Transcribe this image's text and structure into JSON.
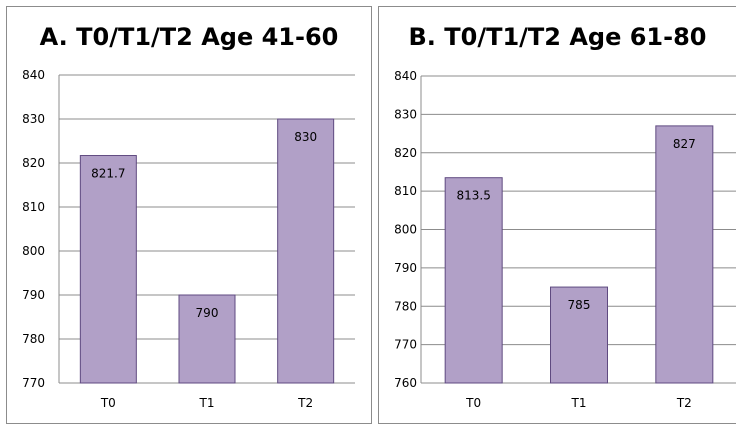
{
  "chart_data": [
    {
      "type": "bar",
      "title": "A. T0/T1/T2 Age 41-60",
      "xlabel": "",
      "ylabel": "",
      "categories": [
        "T0",
        "T1",
        "T2"
      ],
      "values": [
        821.7,
        790,
        830
      ],
      "data_labels": [
        "821.7",
        "790",
        "830"
      ],
      "ylim": [
        770,
        840
      ],
      "yticks": [
        770,
        780,
        790,
        800,
        810,
        820,
        830,
        840
      ],
      "grid": true,
      "bar_color": "#b1a0c7",
      "bar_border_color": "#5f4a80"
    },
    {
      "type": "bar",
      "title": "B. T0/T1/T2 Age 61-80",
      "xlabel": "",
      "ylabel": "",
      "categories": [
        "T0",
        "T1",
        "T2"
      ],
      "values": [
        813.5,
        785,
        827
      ],
      "data_labels": [
        "813.5",
        "785",
        "827"
      ],
      "ylim": [
        760,
        840
      ],
      "yticks": [
        760,
        770,
        780,
        790,
        800,
        810,
        820,
        830,
        840
      ],
      "grid": true,
      "bar_color": "#b1a0c7",
      "bar_border_color": "#5f4a80"
    }
  ]
}
